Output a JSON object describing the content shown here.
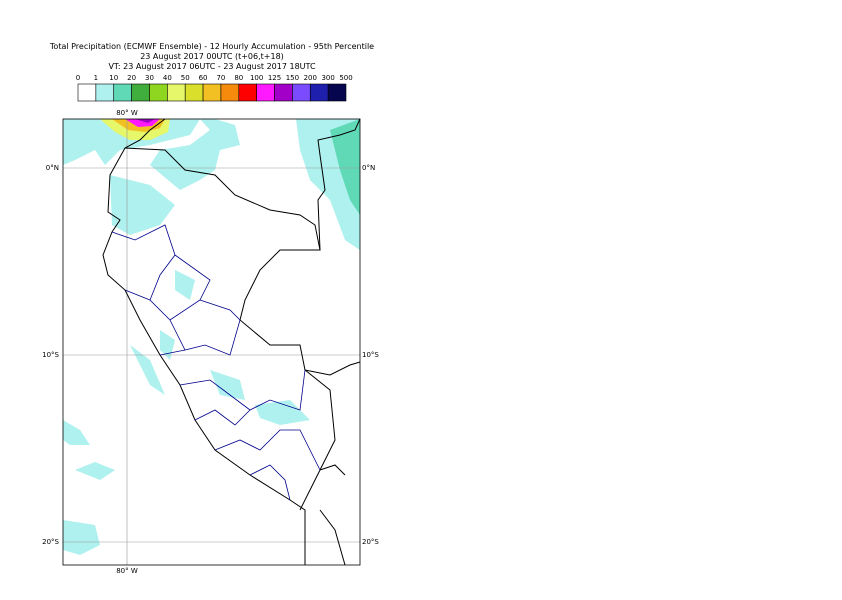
{
  "header": {
    "lines": [
      "Total Precipitation (ECMWF Ensemble) - 12 Hourly Accumulation - 95th Percentile",
      "23 August 2017 00UTC (t+06,t+18)",
      "VT: 23 August 2017 06UTC - 23 August 2017 18UTC"
    ]
  },
  "legend": {
    "thresholds": [
      "0",
      "1",
      "10",
      "20",
      "30",
      "40",
      "50",
      "60",
      "70",
      "80",
      "100",
      "125",
      "150",
      "200",
      "300",
      "500"
    ],
    "colors": [
      "#ffffff",
      "#aef1ee",
      "#5fd9b6",
      "#3fae3c",
      "#8ed61f",
      "#e6f76a",
      "#d9df2a",
      "#f2c023",
      "#f58a0c",
      "#ff0000",
      "#ff19ff",
      "#a200c8",
      "#7b4cff",
      "#1f1fae",
      "#06064f"
    ]
  },
  "map": {
    "lon_labels": {
      "top": "80° W",
      "bottom": "80° W"
    },
    "lat_labels": [
      "0°N",
      "10°S",
      "20°S"
    ]
  }
}
